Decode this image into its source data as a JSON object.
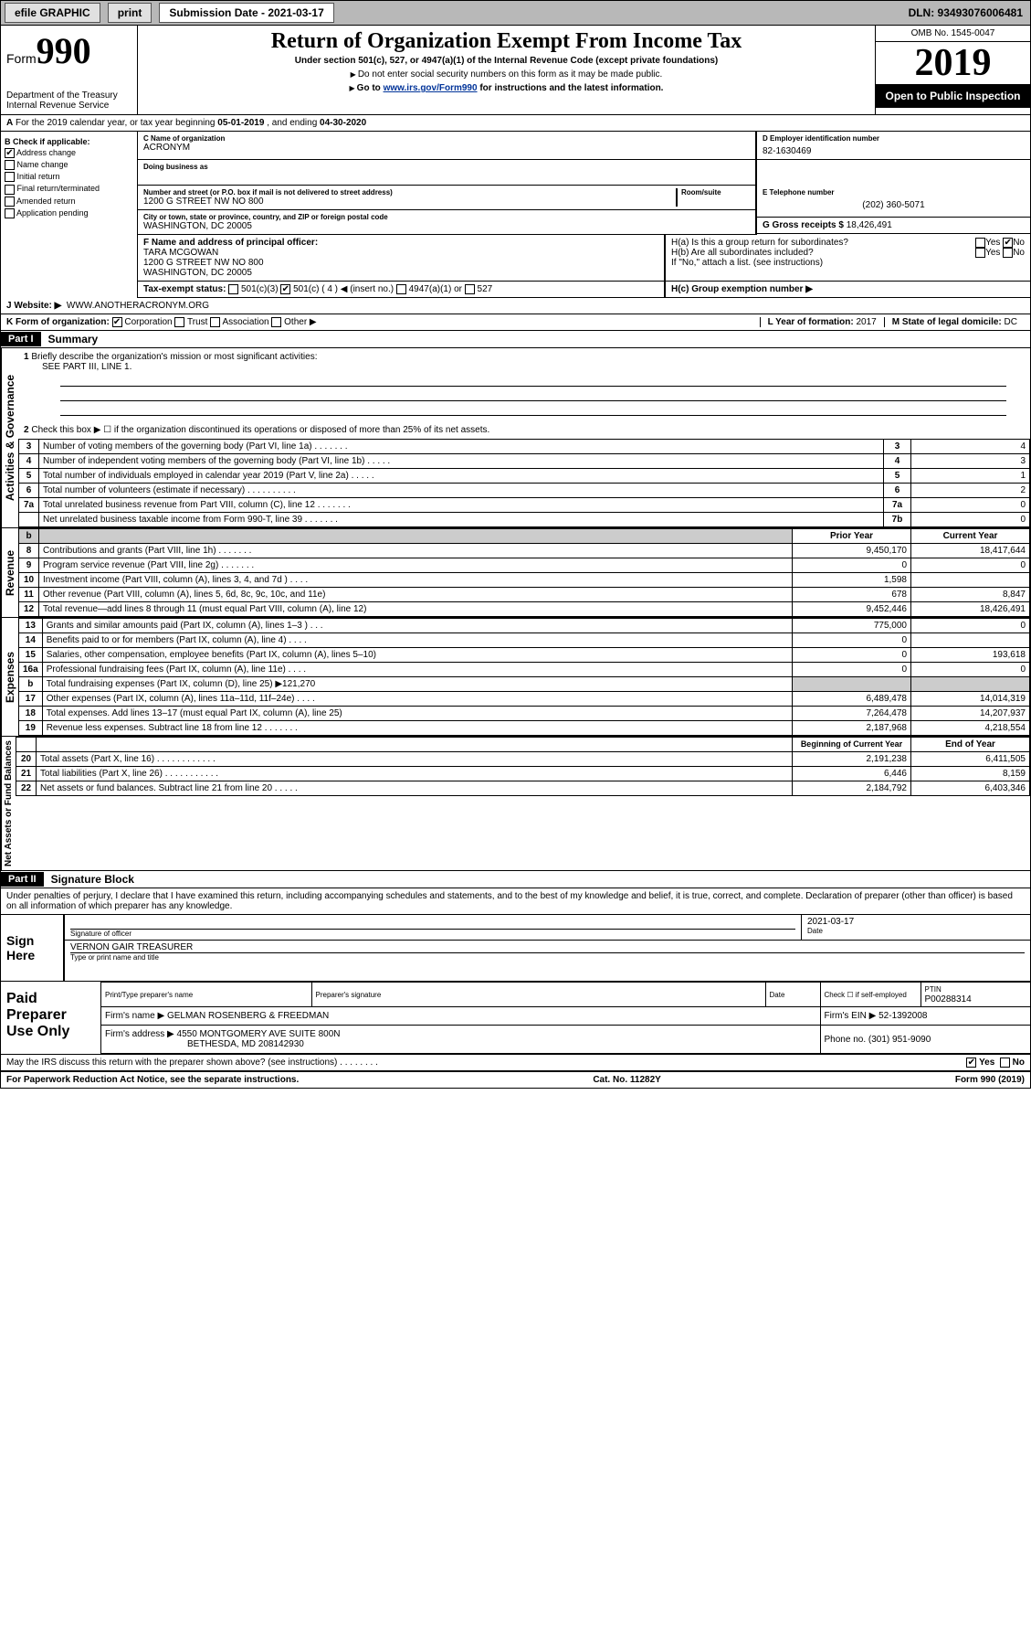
{
  "topbar": {
    "efile": "efile GRAPHIC",
    "print": "print",
    "subdate_label": "Submission Date - 2021-03-17",
    "dln": "DLN: 93493076006481"
  },
  "header": {
    "form_label": "Form",
    "form_no": "990",
    "dept": "Department of the Treasury\nInternal Revenue Service",
    "title": "Return of Organization Exempt From Income Tax",
    "sub1": "Under section 501(c), 527, or 4947(a)(1) of the Internal Revenue Code (except private foundations)",
    "sub2": "Do not enter social security numbers on this form as it may be made public.",
    "sub3_pre": "Go to ",
    "sub3_link": "www.irs.gov/Form990",
    "sub3_post": " for instructions and the latest information.",
    "omb": "OMB No. 1545-0047",
    "year": "2019",
    "open": "Open to Public Inspection"
  },
  "rowA": {
    "text_pre": "For the 2019 calendar year, or tax year beginning ",
    "begin": "05-01-2019",
    "mid": " , and ending ",
    "end": "04-30-2020"
  },
  "colB": {
    "label": "B Check if applicable:",
    "items": [
      "Address change",
      "Name change",
      "Initial return",
      "Final return/terminated",
      "Amended return",
      "Application pending"
    ],
    "checked_idx": 0
  },
  "colC": {
    "c_label": "C Name of organization",
    "org": "ACRONYM",
    "dba_label": "Doing business as",
    "addr_label": "Number and street (or P.O. box if mail is not delivered to street address)",
    "room_label": "Room/suite",
    "addr": "1200 G STREET NW NO 800",
    "city_label": "City or town, state or province, country, and ZIP or foreign postal code",
    "city": "WASHINGTON, DC  20005",
    "f_label": "F Name and address of principal officer:",
    "officer": "TARA MCGOWAN",
    "officer_addr1": "1200 G STREET NW NO 800",
    "officer_addr2": "WASHINGTON, DC  20005"
  },
  "colD": {
    "d_label": "D Employer identification number",
    "ein": "82-1630469",
    "e_label": "E Telephone number",
    "phone": "(202) 360-5071",
    "g_label": "G Gross receipts $",
    "gross": "18,426,491"
  },
  "h": {
    "ha": "H(a)  Is this a group return for subordinates?",
    "hb": "H(b)  Are all subordinates included?",
    "hb_note": "If \"No,\" attach a list. (see instructions)",
    "hc": "H(c)  Group exemption number ▶",
    "yes": "Yes",
    "no": "No"
  },
  "taxstatus": {
    "label": "Tax-exempt status:",
    "opts": [
      "501(c)(3)",
      "501(c) ( 4 ) ◀ (insert no.)",
      "4947(a)(1) or",
      "527"
    ]
  },
  "website": {
    "label": "J   Website: ▶",
    "val": "WWW.ANOTHERACRONYM.ORG"
  },
  "rowK": {
    "k": "K Form of organization:",
    "opts": [
      "Corporation",
      "Trust",
      "Association",
      "Other ▶"
    ],
    "l_label": "L Year of formation:",
    "l_val": "2017",
    "m_label": "M State of legal domicile:",
    "m_val": "DC"
  },
  "part1": {
    "label": "Part I",
    "title": "Summary",
    "q1": "Briefly describe the organization's mission or most significant activities:",
    "q1_ans": "SEE PART III, LINE 1.",
    "q2": "Check this box ▶ ☐ if the organization discontinued its operations or disposed of more than 25% of its net assets.",
    "side_labels": {
      "ag": "Activities & Governance",
      "rev": "Revenue",
      "exp": "Expenses",
      "na": "Net Assets or Fund Balances"
    },
    "col_headers": {
      "prior": "Prior Year",
      "current": "Current Year",
      "boy": "Beginning of Current Year",
      "eoy": "End of Year"
    },
    "rows_ag": [
      {
        "n": "3",
        "d": "Number of voting members of the governing body (Part VI, line 1a)  .   .   .   .   .   .   .",
        "box": "3",
        "v": "4"
      },
      {
        "n": "4",
        "d": "Number of independent voting members of the governing body (Part VI, line 1b)   .    .    .    .    .",
        "box": "4",
        "v": "3"
      },
      {
        "n": "5",
        "d": "Total number of individuals employed in calendar year 2019 (Part V, line 2a)   .    .    .    .    .",
        "box": "5",
        "v": "1"
      },
      {
        "n": "6",
        "d": "Total number of volunteers (estimate if necessary)   .    .    .    .    .    .    .    .    .    .",
        "box": "6",
        "v": "2"
      },
      {
        "n": "7a",
        "d": "Total unrelated business revenue from Part VIII, column (C), line 12   .    .    .    .    .    .    .",
        "box": "7a",
        "v": "0"
      },
      {
        "n": "",
        "d": "Net unrelated business taxable income from Form 990-T, line 39   .    .    .    .    .    .    .",
        "box": "7b",
        "v": "0"
      }
    ],
    "rows_rev": [
      {
        "n": "8",
        "d": "Contributions and grants (Part VIII, line 1h)   .    .    .    .    .    .    .",
        "p": "9,450,170",
        "c": "18,417,644"
      },
      {
        "n": "9",
        "d": "Program service revenue (Part VIII, line 2g)   .    .    .    .    .    .    .",
        "p": "0",
        "c": "0"
      },
      {
        "n": "10",
        "d": "Investment income (Part VIII, column (A), lines 3, 4, and 7d )    .    .    .    .",
        "p": "1,598",
        "c": ""
      },
      {
        "n": "11",
        "d": "Other revenue (Part VIII, column (A), lines 5, 6d, 8c, 9c, 10c, and 11e)",
        "p": "678",
        "c": "8,847"
      },
      {
        "n": "12",
        "d": "Total revenue—add lines 8 through 11 (must equal Part VIII, column (A), line 12)",
        "p": "9,452,446",
        "c": "18,426,491"
      }
    ],
    "rows_exp": [
      {
        "n": "13",
        "d": "Grants and similar amounts paid (Part IX, column (A), lines 1–3 )    .    .    .",
        "p": "775,000",
        "c": "0"
      },
      {
        "n": "14",
        "d": "Benefits paid to or for members (Part IX, column (A), line 4)   .    .    .    .",
        "p": "0",
        "c": ""
      },
      {
        "n": "15",
        "d": "Salaries, other compensation, employee benefits (Part IX, column (A), lines 5–10)",
        "p": "0",
        "c": "193,618"
      },
      {
        "n": "16a",
        "d": "Professional fundraising fees (Part IX, column (A), line 11e)   .    .    .    .",
        "p": "0",
        "c": "0"
      },
      {
        "n": "b",
        "d": "Total fundraising expenses (Part IX, column (D), line 25) ▶121,270",
        "p": "grey",
        "c": "grey"
      },
      {
        "n": "17",
        "d": "Other expenses (Part IX, column (A), lines 11a–11d, 11f–24e)   .    .    .    .",
        "p": "6,489,478",
        "c": "14,014,319"
      },
      {
        "n": "18",
        "d": "Total expenses. Add lines 13–17 (must equal Part IX, column (A), line 25)",
        "p": "7,264,478",
        "c": "14,207,937"
      },
      {
        "n": "19",
        "d": "Revenue less expenses. Subtract line 18 from line 12   .    .    .    .    .    .    .",
        "p": "2,187,968",
        "c": "4,218,554"
      }
    ],
    "rows_na": [
      {
        "n": "20",
        "d": "Total assets (Part X, line 16)   .    .    .    .    .    .    .    .    .    .    .    .",
        "p": "2,191,238",
        "c": "6,411,505"
      },
      {
        "n": "21",
        "d": "Total liabilities (Part X, line 26)   .    .    .    .    .    .    .    .    .    .    .",
        "p": "6,446",
        "c": "8,159"
      },
      {
        "n": "22",
        "d": "Net assets or fund balances. Subtract line 21 from line 20   .    .    .    .    .",
        "p": "2,184,792",
        "c": "6,403,346"
      }
    ]
  },
  "part2": {
    "label": "Part II",
    "title": "Signature Block",
    "perjury": "Under penalties of perjury, I declare that I have examined this return, including accompanying schedules and statements, and to the best of my knowledge and belief, it is true, correct, and complete. Declaration of preparer (other than officer) is based on all information of which preparer has any knowledge.",
    "sign_here": "Sign Here",
    "sig_officer": "Signature of officer",
    "sig_date_label": "Date",
    "sig_date": "2021-03-17",
    "officer_name": "VERNON GAIR TREASURER",
    "type_label": "Type or print name and title",
    "paid": "Paid Preparer Use Only",
    "prep_name_label": "Print/Type preparer's name",
    "prep_sig_label": "Preparer's signature",
    "date_label": "Date",
    "check_label": "Check ☐ if self-employed",
    "ptin_label": "PTIN",
    "ptin": "P00288314",
    "firm_name_label": "Firm's name    ▶",
    "firm_name": "GELMAN ROSENBERG & FREEDMAN",
    "firm_ein_label": "Firm's EIN ▶",
    "firm_ein": "52-1392008",
    "firm_addr_label": "Firm's address ▶",
    "firm_addr1": "4550 MONTGOMERY AVE SUITE 800N",
    "firm_addr2": "BETHESDA, MD  208142930",
    "phone_label": "Phone no.",
    "phone": "(301) 951-9090",
    "discuss": "May the IRS discuss this return with the preparer shown above? (see instructions)    .    .    .    .    .    .    .    .",
    "yes": "Yes",
    "no": "No"
  },
  "footer": {
    "left": "For Paperwork Reduction Act Notice, see the separate instructions.",
    "mid": "Cat. No. 11282Y",
    "right": "Form 990 (2019)"
  }
}
